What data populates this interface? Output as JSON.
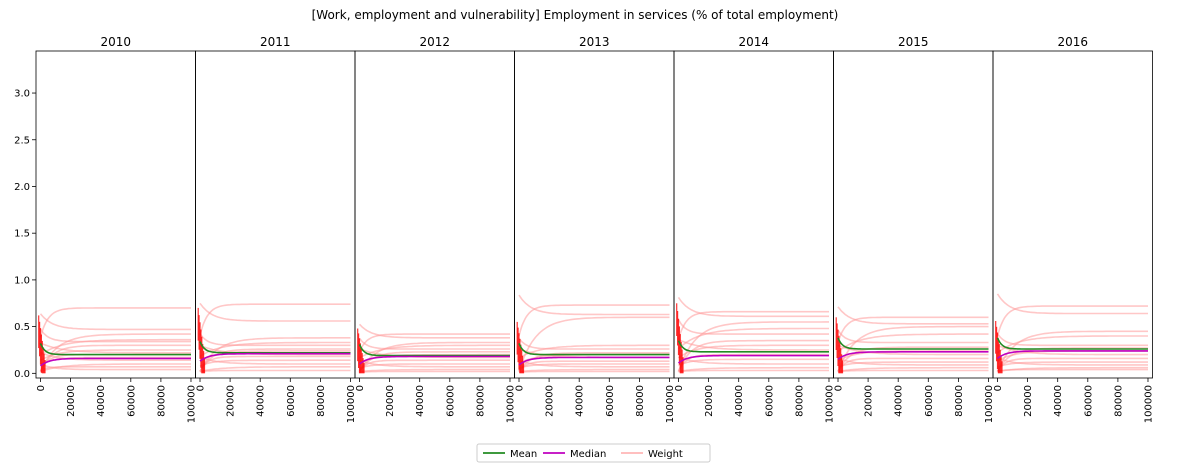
{
  "title": "[Work, employment and vulnerability] Employment in services (% of total employment)",
  "chart_data": {
    "type": "line",
    "title": "[Work, employment and vulnerability] Employment in services (% of total employment)",
    "panels": [
      "2010",
      "2011",
      "2012",
      "2013",
      "2014",
      "2015",
      "2016"
    ],
    "xlim": [
      -3000,
      103000
    ],
    "ylim": [
      -0.05,
      3.45
    ],
    "x_ticks": [
      0,
      20000,
      40000,
      60000,
      80000,
      100000
    ],
    "y_ticks": [
      0.0,
      0.5,
      1.0,
      1.5,
      2.0,
      2.5,
      3.0
    ],
    "x_tick_labels": [
      "0",
      "20000",
      "40000",
      "60000",
      "80000",
      "100000"
    ],
    "y_tick_labels": [
      "0.0",
      "0.5",
      "1.0",
      "1.5",
      "2.0",
      "2.5",
      "3.0"
    ],
    "legend": {
      "placement": "bottom-center",
      "entries": [
        {
          "label": "Mean",
          "color": "#228B22"
        },
        {
          "label": "Median",
          "color": "#BF00BF"
        },
        {
          "label": "Weight",
          "color": "#FFB6B6"
        }
      ]
    },
    "colors": {
      "mean": "#228B22",
      "median": "#BF00BF",
      "weight": "#FF9999",
      "spike": "#FF0000",
      "median_dark": "#8B0040"
    },
    "series_panels": [
      {
        "year": "2010",
        "mean_final": 0.2,
        "median_final": 0.16,
        "spike_max": 0.62,
        "weights": [
          0.7,
          0.47,
          0.42,
          0.36,
          0.34,
          0.3,
          0.25,
          0.22,
          0.2,
          0.17,
          0.14,
          0.1,
          0.07,
          0.04
        ]
      },
      {
        "year": "2011",
        "mean_final": 0.22,
        "median_final": 0.21,
        "spike_max": 0.7,
        "weights": [
          0.74,
          0.56,
          0.38,
          0.33,
          0.3,
          0.26,
          0.24,
          0.2,
          0.18,
          0.14,
          0.1,
          0.07,
          0.03
        ]
      },
      {
        "year": "2012",
        "mean_final": 0.19,
        "median_final": 0.18,
        "spike_max": 0.48,
        "weights": [
          0.42,
          0.38,
          0.33,
          0.3,
          0.26,
          0.23,
          0.2,
          0.17,
          0.14,
          0.1,
          0.07,
          0.04,
          0.02
        ]
      },
      {
        "year": "2013",
        "mean_final": 0.2,
        "median_final": 0.17,
        "spike_max": 0.55,
        "weights": [
          0.73,
          0.63,
          0.6,
          0.3,
          0.26,
          0.22,
          0.2,
          0.17,
          0.13,
          0.1,
          0.07,
          0.04,
          0.02
        ]
      },
      {
        "year": "2014",
        "mean_final": 0.23,
        "median_final": 0.19,
        "spike_max": 0.75,
        "weights": [
          0.66,
          0.61,
          0.55,
          0.48,
          0.42,
          0.35,
          0.3,
          0.25,
          0.2,
          0.15,
          0.1,
          0.06,
          0.03
        ]
      },
      {
        "year": "2015",
        "mean_final": 0.26,
        "median_final": 0.23,
        "spike_max": 0.6,
        "weights": [
          0.6,
          0.53,
          0.5,
          0.42,
          0.33,
          0.28,
          0.24,
          0.2,
          0.16,
          0.12,
          0.09,
          0.06,
          0.03
        ]
      },
      {
        "year": "2016",
        "mean_final": 0.26,
        "median_final": 0.24,
        "spike_max": 0.56,
        "weights": [
          0.72,
          0.64,
          0.45,
          0.4,
          0.3,
          0.27,
          0.24,
          0.2,
          0.16,
          0.12,
          0.09,
          0.06,
          0.04
        ]
      }
    ]
  }
}
